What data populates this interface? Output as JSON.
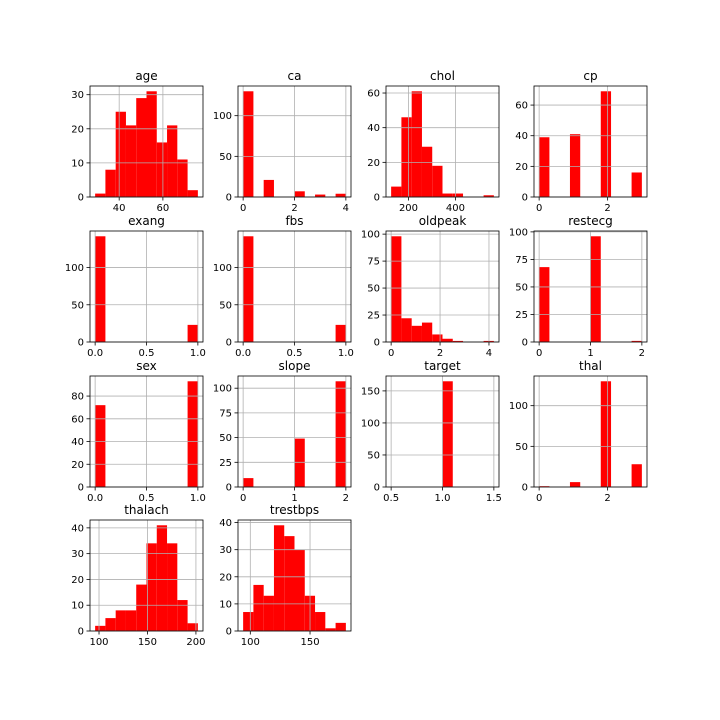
{
  "chart_data": [
    {
      "type": "histogram",
      "title": "age",
      "bins": [
        29,
        33.7,
        38.4,
        43.1,
        47.8,
        52.5,
        57.2,
        61.9,
        66.6,
        71.3,
        76
      ],
      "counts": [
        1,
        8,
        25,
        21,
        29,
        31,
        16,
        21,
        11,
        2
      ],
      "xlim": [
        26.65,
        78.35
      ],
      "ylim": [
        0,
        32.55
      ],
      "xticks": [
        40,
        60
      ],
      "yticks": [
        0,
        10,
        20,
        30
      ],
      "grid": true,
      "color": "#ff0000"
    },
    {
      "type": "histogram",
      "title": "ca",
      "bins": [
        0,
        0.4,
        0.8,
        1.2,
        1.6,
        2.0,
        2.4,
        2.8,
        3.2,
        3.6,
        4
      ],
      "counts": [
        130,
        0,
        21,
        0,
        0,
        7,
        0,
        3,
        0,
        4
      ],
      "xlim": [
        -0.2,
        4.2
      ],
      "ylim": [
        0,
        136.5
      ],
      "xticks": [
        0,
        2,
        4
      ],
      "yticks": [
        0,
        50,
        100
      ],
      "grid": true,
      "color": "#ff0000"
    },
    {
      "type": "histogram",
      "title": "chol",
      "bins": [
        126,
        169.8,
        213.6,
        257.4,
        301.2,
        345,
        388.8,
        432.6,
        476.4,
        520.2,
        564
      ],
      "counts": [
        6,
        46,
        61,
        29,
        18,
        2,
        2,
        0,
        0,
        1
      ],
      "xlim": [
        104.1,
        585.9
      ],
      "ylim": [
        0,
        64.05
      ],
      "xticks": [
        200,
        400
      ],
      "yticks": [
        0,
        20,
        40,
        60
      ],
      "grid": true,
      "color": "#ff0000"
    },
    {
      "type": "histogram",
      "title": "cp",
      "bins": [
        0,
        0.3,
        0.6,
        0.9,
        1.2,
        1.5,
        1.8,
        2.1,
        2.4,
        2.7,
        3
      ],
      "counts": [
        39,
        0,
        0,
        41,
        0,
        0,
        69,
        0,
        0,
        16
      ],
      "xlim": [
        -0.15,
        3.15
      ],
      "ylim": [
        0,
        72.45
      ],
      "xticks": [
        0,
        2
      ],
      "yticks": [
        0,
        20,
        40,
        60
      ],
      "grid": true,
      "color": "#ff0000"
    },
    {
      "type": "histogram",
      "title": "exang",
      "bins": [
        0,
        0.1,
        0.2,
        0.3,
        0.4,
        0.5,
        0.6,
        0.7,
        0.8,
        0.9,
        1
      ],
      "counts": [
        142,
        0,
        0,
        0,
        0,
        0,
        0,
        0,
        0,
        23
      ],
      "xlim": [
        -0.05,
        1.05
      ],
      "ylim": [
        0,
        149.1
      ],
      "xticks": [
        {
          "value": 0,
          "label": "0.0"
        },
        0.5,
        {
          "value": 1,
          "label": "1.0"
        }
      ],
      "yticks": [
        0,
        50,
        100
      ],
      "grid": true,
      "color": "#ff0000"
    },
    {
      "type": "histogram",
      "title": "fbs",
      "bins": [
        0,
        0.1,
        0.2,
        0.3,
        0.4,
        0.5,
        0.6,
        0.7,
        0.8,
        0.9,
        1
      ],
      "counts": [
        142,
        0,
        0,
        0,
        0,
        0,
        0,
        0,
        0,
        23
      ],
      "xlim": [
        -0.05,
        1.05
      ],
      "ylim": [
        0,
        149.1
      ],
      "xticks": [
        {
          "value": 0,
          "label": "0.0"
        },
        0.5,
        {
          "value": 1,
          "label": "1.0"
        }
      ],
      "yticks": [
        0,
        50,
        100
      ],
      "grid": true,
      "color": "#ff0000"
    },
    {
      "type": "histogram",
      "title": "oldpeak",
      "bins": [
        0,
        0.42,
        0.84,
        1.26,
        1.68,
        2.1,
        2.52,
        2.94,
        3.36,
        3.78,
        4.2
      ],
      "counts": [
        98,
        22,
        15,
        18,
        7,
        3,
        1,
        0,
        0,
        1
      ],
      "xlim": [
        -0.21,
        4.41
      ],
      "ylim": [
        0,
        102.9
      ],
      "xticks": [
        0,
        2,
        4
      ],
      "yticks": [
        0,
        25,
        50,
        75,
        100
      ],
      "grid": true,
      "color": "#ff0000"
    },
    {
      "type": "histogram",
      "title": "restecg",
      "bins": [
        0,
        0.2,
        0.4,
        0.6,
        0.8,
        1.0,
        1.2,
        1.4,
        1.6,
        1.8,
        2
      ],
      "counts": [
        68,
        0,
        0,
        0,
        0,
        96,
        0,
        0,
        0,
        1
      ],
      "xlim": [
        -0.1,
        2.1
      ],
      "ylim": [
        0,
        100.8
      ],
      "xticks": [
        0,
        1,
        2
      ],
      "yticks": [
        0,
        25,
        50,
        75,
        100
      ],
      "grid": true,
      "color": "#ff0000"
    },
    {
      "type": "histogram",
      "title": "sex",
      "bins": [
        0,
        0.1,
        0.2,
        0.3,
        0.4,
        0.5,
        0.6,
        0.7,
        0.8,
        0.9,
        1
      ],
      "counts": [
        72,
        0,
        0,
        0,
        0,
        0,
        0,
        0,
        0,
        93
      ],
      "xlim": [
        -0.05,
        1.05
      ],
      "ylim": [
        0,
        97.65
      ],
      "xticks": [
        {
          "value": 0,
          "label": "0.0"
        },
        0.5,
        {
          "value": 1,
          "label": "1.0"
        }
      ],
      "yticks": [
        0,
        20,
        40,
        60,
        80
      ],
      "grid": true,
      "color": "#ff0000"
    },
    {
      "type": "histogram",
      "title": "slope",
      "bins": [
        0,
        0.2,
        0.4,
        0.6,
        0.8,
        1.0,
        1.2,
        1.4,
        1.6,
        1.8,
        2
      ],
      "counts": [
        9,
        0,
        0,
        0,
        0,
        49,
        0,
        0,
        0,
        107
      ],
      "xlim": [
        -0.1,
        2.1
      ],
      "ylim": [
        0,
        112.35
      ],
      "xticks": [
        0,
        1,
        2
      ],
      "yticks": [
        0,
        25,
        50,
        75,
        100
      ],
      "grid": true,
      "color": "#ff0000"
    },
    {
      "type": "histogram",
      "title": "target",
      "bins": [
        0.5,
        0.6,
        0.7,
        0.8,
        0.9,
        1.0,
        1.1,
        1.2,
        1.3,
        1.4,
        1.5
      ],
      "counts": [
        0,
        0,
        0,
        0,
        0,
        165,
        0,
        0,
        0,
        0
      ],
      "xlim": [
        0.45,
        1.55
      ],
      "ylim": [
        0,
        173.25
      ],
      "xticks": [
        0.5,
        {
          "value": 1,
          "label": "1.0"
        },
        1.5
      ],
      "yticks": [
        0,
        50,
        100,
        150
      ],
      "grid": true,
      "color": "#ff0000"
    },
    {
      "type": "histogram",
      "title": "thal",
      "bins": [
        0,
        0.3,
        0.6,
        0.9,
        1.2,
        1.5,
        1.8,
        2.1,
        2.4,
        2.7,
        3
      ],
      "counts": [
        1,
        0,
        0,
        6,
        0,
        0,
        130,
        0,
        0,
        28
      ],
      "xlim": [
        -0.15,
        3.15
      ],
      "ylim": [
        0,
        136.5
      ],
      "xticks": [
        0,
        2
      ],
      "yticks": [
        0,
        50,
        100
      ],
      "grid": true,
      "color": "#ff0000"
    },
    {
      "type": "histogram",
      "title": "thalach",
      "bins": [
        96,
        106.6,
        117.2,
        127.8,
        138.4,
        149,
        159.6,
        170.2,
        180.8,
        191.4,
        202
      ],
      "counts": [
        2,
        5,
        8,
        8,
        18,
        34,
        41,
        34,
        12,
        3
      ],
      "xlim": [
        90.7,
        207.3
      ],
      "ylim": [
        0,
        43.05
      ],
      "xticks": [
        100,
        150,
        200
      ],
      "yticks": [
        0,
        10,
        20,
        30,
        40
      ],
      "grid": true,
      "color": "#ff0000"
    },
    {
      "type": "histogram",
      "title": "trestbps",
      "bins": [
        94,
        102.6,
        111.2,
        119.8,
        128.4,
        137,
        145.6,
        154.2,
        162.8,
        171.4,
        180
      ],
      "counts": [
        7,
        17,
        13,
        39,
        35,
        30,
        13,
        7,
        1,
        3
      ],
      "xlim": [
        89.7,
        184.3
      ],
      "ylim": [
        0,
        40.95
      ],
      "xticks": [
        100,
        150
      ],
      "yticks": [
        0,
        10,
        20,
        30,
        40
      ],
      "grid": true,
      "color": "#ff0000"
    }
  ]
}
